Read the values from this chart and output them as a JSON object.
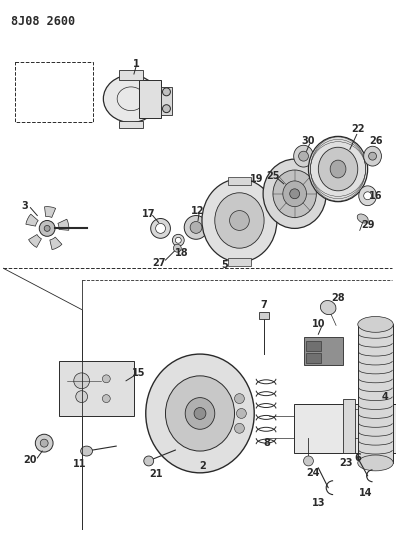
{
  "title": "8J08 2600",
  "bg_color": "#ffffff",
  "lc": "#2a2a2a",
  "title_fontsize": 8.5,
  "label_fontsize": 7,
  "fig_w": 3.99,
  "fig_h": 5.33,
  "dpi": 100
}
